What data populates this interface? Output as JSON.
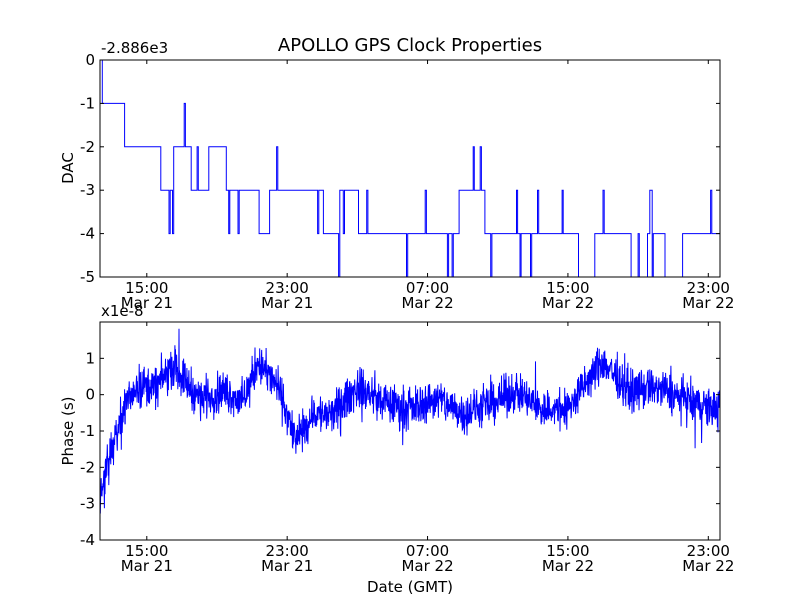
{
  "title": "APOLLO GPS Clock Properties",
  "chart_data": [
    {
      "type": "line",
      "title": "APOLLO GPS Clock Properties",
      "xlabel": "",
      "ylabel": "DAC",
      "offset_label": "-2.886e3",
      "ylim": [
        -5,
        0
      ],
      "y_ticks": [
        0,
        -1,
        -2,
        -3,
        -4,
        -5
      ],
      "y_tick_labels": [
        "0",
        "-1",
        "-2",
        "-3",
        "-4",
        "-5"
      ],
      "x_ticks": [
        {
          "line1": "15:00",
          "line2": "Mar 21"
        },
        {
          "line1": "23:00",
          "line2": "Mar 21"
        },
        {
          "line1": "07:00",
          "line2": "Mar 22"
        },
        {
          "line1": "15:00",
          "line2": "Mar 22"
        },
        {
          "line1": "23:00",
          "line2": "Mar 22"
        }
      ],
      "xlim": [
        "2008-03-21 12:20",
        "2008-03-22 23:40"
      ],
      "series": [
        {
          "color": "#0000ff",
          "x": [
            "2008-03-21 12:20",
            "2008-03-21 12:35",
            "2008-03-21 13:10",
            "2008-03-21 14:10",
            "2008-03-21 14:40",
            "2008-03-21 15:30",
            "2008-03-21 16:00",
            "2008-03-21 17:00",
            "2008-03-21 18:00",
            "2008-03-21 19:00",
            "2008-03-21 20:00",
            "2008-03-21 21:00",
            "2008-03-21 21:40",
            "2008-03-21 22:20",
            "2008-03-21 23:00",
            "2008-03-22 00:00",
            "2008-03-22 00:30",
            "2008-03-22 01:30",
            "2008-03-22 02:30",
            "2008-03-22 03:30",
            "2008-03-22 05:00",
            "2008-03-22 06:30",
            "2008-03-22 08:00",
            "2008-03-22 09:30",
            "2008-03-22 11:00",
            "2008-03-22 12:30",
            "2008-03-22 13:30",
            "2008-03-22 14:30",
            "2008-03-22 15:10",
            "2008-03-22 16:00",
            "2008-03-22 17:00",
            "2008-03-22 18:00",
            "2008-03-22 19:00",
            "2008-03-22 20:00",
            "2008-03-22 21:00",
            "2008-03-22 22:00",
            "2008-03-22 23:40"
          ],
          "y": [
            0,
            -1,
            -1,
            -2,
            -2,
            -2,
            -3,
            -2,
            -3,
            -2,
            -3,
            -3,
            -4,
            -3,
            -3,
            -3,
            -3,
            -4,
            -3,
            -4,
            -4,
            -4,
            -4,
            -3,
            -4,
            -4,
            -4,
            -4,
            -4,
            -5,
            -4,
            -4,
            -5,
            -4,
            -5,
            -4,
            -4
          ]
        }
      ]
    },
    {
      "type": "line",
      "xlabel": "Date (GMT)",
      "ylabel": "Phase (s)",
      "offset_label": "x1e-8",
      "ylim": [
        -4,
        2
      ],
      "y_ticks": [
        1,
        0,
        -1,
        -2,
        -3,
        -4
      ],
      "y_tick_labels": [
        "1",
        "0",
        "-1",
        "-2",
        "-3",
        "-4"
      ],
      "x_ticks": [
        {
          "line1": "15:00",
          "line2": "Mar 21"
        },
        {
          "line1": "23:00",
          "line2": "Mar 21"
        },
        {
          "line1": "07:00",
          "line2": "Mar 22"
        },
        {
          "line1": "15:00",
          "line2": "Mar 22"
        },
        {
          "line1": "23:00",
          "line2": "Mar 22"
        }
      ],
      "xlim": [
        "2008-03-21 12:20",
        "2008-03-22 23:40"
      ],
      "series": [
        {
          "color": "#0000ff",
          "x": [
            "2008-03-21 12:20",
            "2008-03-21 12:40",
            "2008-03-21 13:10",
            "2008-03-21 13:40",
            "2008-03-21 14:30",
            "2008-03-21 15:30",
            "2008-03-21 16:30",
            "2008-03-21 18:00",
            "2008-03-21 19:30",
            "2008-03-21 20:30",
            "2008-03-21 21:20",
            "2008-03-21 22:30",
            "2008-03-21 23:30",
            "2008-03-22 00:30",
            "2008-03-22 01:30",
            "2008-03-22 03:00",
            "2008-03-22 04:30",
            "2008-03-22 06:00",
            "2008-03-22 07:30",
            "2008-03-22 09:00",
            "2008-03-22 10:30",
            "2008-03-22 12:00",
            "2008-03-22 13:30",
            "2008-03-22 15:00",
            "2008-03-22 16:00",
            "2008-03-22 17:00",
            "2008-03-22 18:30",
            "2008-03-22 20:00",
            "2008-03-22 21:30",
            "2008-03-22 22:30",
            "2008-03-22 23:40"
          ],
          "y": [
            -2.8,
            -2.2,
            -1.2,
            -0.4,
            0.3,
            0.2,
            0.8,
            -0.1,
            0.1,
            -0.2,
            0.9,
            0.2,
            -1.3,
            -0.5,
            -0.6,
            0.2,
            -0.2,
            -0.4,
            -0.1,
            -0.5,
            -0.3,
            0.1,
            -0.4,
            -0.4,
            0.3,
            0.9,
            0.1,
            0.2,
            -0.1,
            -0.3,
            -0.4
          ]
        }
      ]
    }
  ]
}
